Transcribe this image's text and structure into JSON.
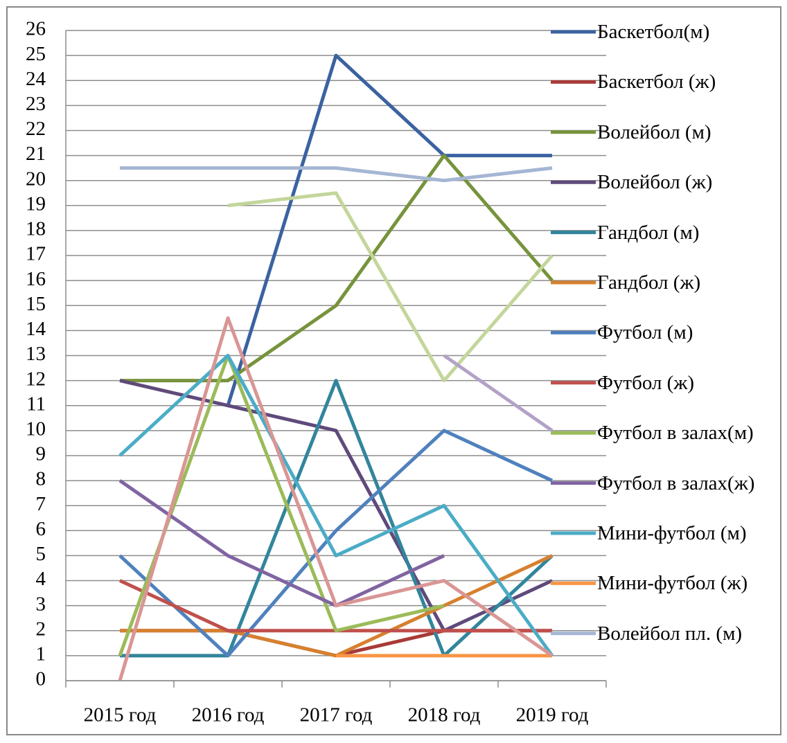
{
  "chart_data": {
    "type": "line",
    "categories": [
      "2015 год",
      "2016 год",
      "2017 год",
      "2018 год",
      "2019 год"
    ],
    "ylim": [
      0,
      26
    ],
    "yticks": [
      0,
      1,
      2,
      3,
      4,
      5,
      6,
      7,
      8,
      9,
      10,
      11,
      12,
      13,
      14,
      15,
      16,
      17,
      18,
      19,
      20,
      21,
      22,
      23,
      24,
      25,
      26
    ],
    "grid": true,
    "series": [
      {
        "name": "Баскетбол(м)",
        "color": "#3b62a0",
        "values": [
          null,
          11,
          25,
          21,
          21
        ]
      },
      {
        "name": "Баскетбол (ж)",
        "color": "#a83a38",
        "values": [
          2,
          2,
          1,
          2,
          2
        ]
      },
      {
        "name": "Волейбол (м)",
        "color": "#77933c",
        "values": [
          12,
          12,
          15,
          21,
          16
        ]
      },
      {
        "name": "Волейбол (ж)",
        "color": "#5f4a7b",
        "values": [
          12,
          11,
          10,
          2,
          4
        ]
      },
      {
        "name": "Гандбол (м)",
        "color": "#31859c",
        "values": [
          1,
          1,
          12,
          1,
          5
        ]
      },
      {
        "name": "Гандбол (ж)",
        "color": "#d6802f",
        "values": [
          2,
          2,
          1,
          3,
          5
        ]
      },
      {
        "name": "Футбол (м)",
        "color": "#4f81bd",
        "values": [
          5,
          1,
          6,
          10,
          8
        ]
      },
      {
        "name": "Футбол (ж)",
        "color": "#c0504d",
        "values": [
          4,
          2,
          2,
          2,
          2
        ]
      },
      {
        "name": "Футбол в залах(м)",
        "color": "#9bbb59",
        "values": [
          1,
          13,
          2,
          3,
          null
        ]
      },
      {
        "name": "Футбол в залах(ж)",
        "color": "#8064a2",
        "values": [
          8,
          5,
          3,
          5,
          null
        ]
      },
      {
        "name": "Мини-футбол (м)",
        "color": "#4bacc6",
        "values": [
          9,
          13,
          5,
          7,
          1
        ]
      },
      {
        "name": "Мини-футбол (ж)",
        "color": "#f79646",
        "values": [
          null,
          null,
          1,
          1,
          1
        ]
      },
      {
        "name": "Волейбол пл. (м)",
        "color": "#a5b6d4",
        "values": [
          20.5,
          20.5,
          20.5,
          20,
          20.5
        ]
      },
      {
        "color": "#c3d69b",
        "values": [
          null,
          19,
          19.5,
          12,
          17
        ]
      },
      {
        "color": "#b3a2c7",
        "values": [
          null,
          null,
          null,
          13,
          10
        ]
      },
      {
        "color": "#d99694",
        "values": [
          0,
          14.5,
          3,
          4,
          1
        ]
      }
    ]
  }
}
